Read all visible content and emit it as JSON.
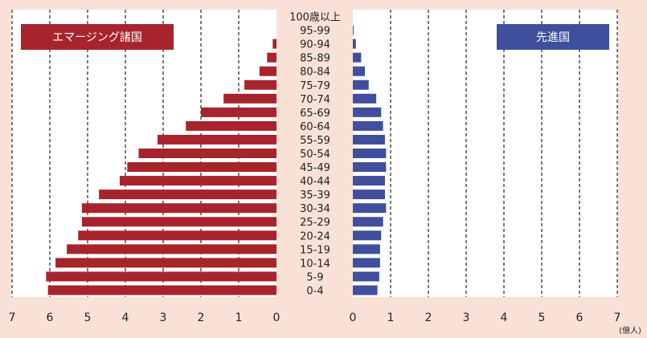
{
  "chart_data": {
    "type": "bar",
    "orientation": "horizontal",
    "layout": "population-pyramid",
    "unit_label": "(億人)",
    "categories": [
      "0-4",
      "5-9",
      "10-14",
      "15-19",
      "20-24",
      "25-29",
      "30-34",
      "35-39",
      "40-44",
      "45-49",
      "50-54",
      "55-59",
      "60-64",
      "65-69",
      "70-74",
      "75-79",
      "80-84",
      "85-89",
      "90-94",
      "95-99",
      "100歳以上"
    ],
    "xticks": [
      "0",
      "1",
      "2",
      "3",
      "4",
      "5",
      "6",
      "7"
    ],
    "left_xticks": [
      "7",
      "6",
      "5",
      "4",
      "3",
      "2",
      "1",
      "0"
    ],
    "xlim": [
      0,
      7
    ],
    "grid": "vertical-dashed",
    "series": [
      {
        "name": "エマージング諸国",
        "side": "left",
        "color": "#a8242c",
        "values": [
          6.05,
          6.1,
          5.85,
          5.55,
          5.25,
          5.15,
          5.15,
          4.7,
          4.15,
          3.95,
          3.65,
          3.15,
          2.4,
          2.0,
          1.4,
          0.85,
          0.45,
          0.25,
          0.1,
          0.0,
          0.0
        ]
      },
      {
        "name": "先進国",
        "side": "right",
        "color": "#3f4f9e",
        "values": [
          0.65,
          0.7,
          0.72,
          0.72,
          0.75,
          0.8,
          0.88,
          0.85,
          0.85,
          0.88,
          0.88,
          0.85,
          0.8,
          0.75,
          0.62,
          0.42,
          0.32,
          0.22,
          0.08,
          0.02,
          0.0
        ]
      }
    ]
  }
}
